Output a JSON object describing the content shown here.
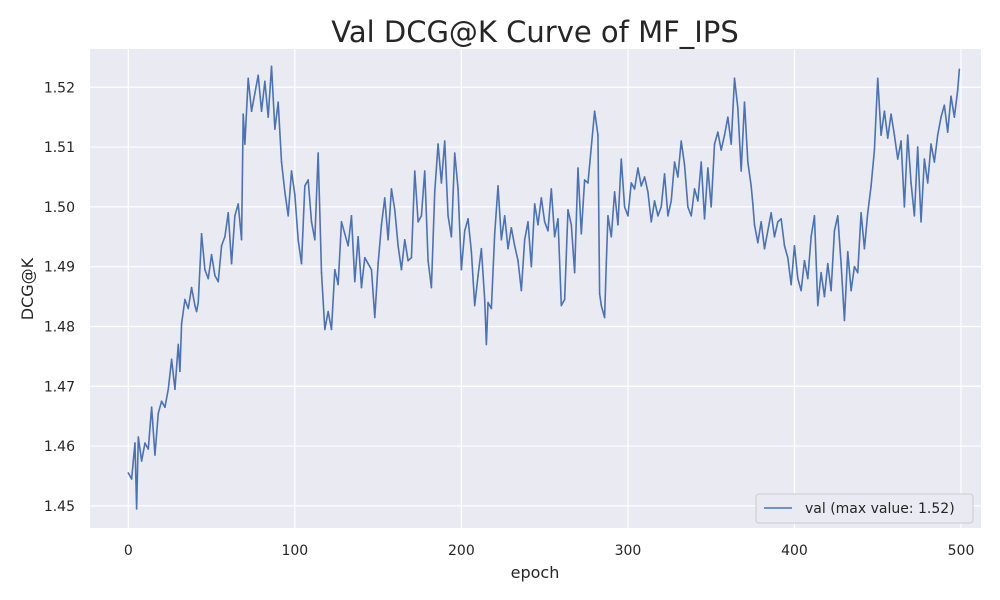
{
  "chart_data": {
    "type": "line",
    "title": "Val DCG@K Curve of MF_IPS",
    "xlabel": "epoch",
    "ylabel": "DCG@K",
    "xlim": [
      -23,
      512
    ],
    "ylim": [
      1.4463,
      1.5264
    ],
    "xticks": [
      0,
      100,
      200,
      300,
      400,
      500
    ],
    "yticks": [
      1.45,
      1.46,
      1.47,
      1.48,
      1.49,
      1.5,
      1.51,
      1.52
    ],
    "xtick_labels": [
      "0",
      "100",
      "200",
      "300",
      "400",
      "500"
    ],
    "ytick_labels": [
      "1.45",
      "1.46",
      "1.47",
      "1.48",
      "1.49",
      "1.50",
      "1.51",
      "1.52"
    ],
    "grid": true,
    "legend_position": "lower-right",
    "colors": {
      "line": "#4c72b0",
      "background": "#eaeaf2",
      "grid": "#ffffff"
    },
    "series": [
      {
        "name": "val (max value: 1.52)",
        "x": [
          0,
          2,
          4,
          5,
          6,
          8,
          10,
          12,
          14,
          16,
          18,
          20,
          22,
          24,
          26,
          28,
          30,
          31,
          32,
          34,
          36,
          38,
          40,
          41,
          42,
          44,
          46,
          48,
          50,
          52,
          54,
          56,
          58,
          60,
          62,
          64,
          66,
          68,
          69,
          70,
          72,
          74,
          76,
          78,
          80,
          82,
          84,
          86,
          88,
          90,
          92,
          94,
          96,
          98,
          100,
          102,
          104,
          106,
          108,
          110,
          112,
          114,
          116,
          118,
          120,
          122,
          124,
          126,
          128,
          130,
          132,
          134,
          136,
          138,
          140,
          142,
          144,
          146,
          148,
          150,
          152,
          154,
          156,
          158,
          160,
          162,
          164,
          166,
          168,
          170,
          172,
          174,
          176,
          178,
          180,
          182,
          184,
          186,
          188,
          190,
          192,
          194,
          196,
          198,
          200,
          202,
          204,
          206,
          208,
          210,
          212,
          214,
          215,
          216,
          218,
          220,
          222,
          224,
          226,
          228,
          230,
          232,
          234,
          236,
          238,
          240,
          242,
          244,
          246,
          248,
          250,
          252,
          254,
          256,
          258,
          260,
          262,
          264,
          266,
          268,
          270,
          272,
          274,
          276,
          278,
          280,
          282,
          283,
          284,
          286,
          287,
          288,
          290,
          292,
          294,
          296,
          298,
          300,
          302,
          304,
          306,
          308,
          310,
          312,
          314,
          316,
          318,
          320,
          322,
          324,
          326,
          328,
          330,
          332,
          334,
          336,
          338,
          340,
          342,
          344,
          346,
          348,
          350,
          352,
          354,
          356,
          358,
          360,
          362,
          364,
          366,
          368,
          370,
          372,
          374,
          375,
          376,
          378,
          380,
          382,
          384,
          386,
          388,
          390,
          392,
          394,
          396,
          398,
          400,
          402,
          404,
          406,
          408,
          410,
          412,
          414,
          416,
          418,
          420,
          422,
          424,
          426,
          428,
          430,
          432,
          434,
          436,
          438,
          440,
          442,
          444,
          446,
          448,
          450,
          452,
          454,
          456,
          458,
          460,
          462,
          464,
          466,
          468,
          470,
          472,
          474,
          476,
          478,
          480,
          482,
          484,
          486,
          488,
          490,
          492,
          494,
          496,
          498,
          499
        ],
        "y": [
          1.4555,
          1.4545,
          1.4605,
          1.4495,
          1.4615,
          1.4575,
          1.4605,
          1.4595,
          1.4665,
          1.4585,
          1.4655,
          1.4675,
          1.4665,
          1.4695,
          1.4745,
          1.4695,
          1.477,
          1.4725,
          1.4805,
          1.4845,
          1.483,
          1.4865,
          1.4835,
          1.4825,
          1.484,
          1.4955,
          1.4895,
          1.488,
          1.492,
          1.4885,
          1.4875,
          1.4935,
          1.495,
          1.499,
          1.4905,
          1.4985,
          1.5005,
          1.4945,
          1.5155,
          1.5105,
          1.5215,
          1.516,
          1.519,
          1.522,
          1.516,
          1.521,
          1.515,
          1.5235,
          1.513,
          1.5175,
          1.5075,
          1.5025,
          1.4985,
          1.506,
          1.502,
          1.4945,
          1.4905,
          1.5035,
          1.5045,
          1.4975,
          1.4945,
          1.509,
          1.489,
          1.4795,
          1.4825,
          1.4795,
          1.4895,
          1.487,
          1.4975,
          1.4955,
          1.4935,
          1.4985,
          1.4875,
          1.495,
          1.4865,
          1.4915,
          1.4905,
          1.4895,
          1.4815,
          1.4905,
          1.497,
          1.5015,
          1.4945,
          1.503,
          1.4995,
          1.4935,
          1.4895,
          1.4945,
          1.491,
          1.4915,
          1.506,
          1.4975,
          1.4985,
          1.506,
          1.491,
          1.4865,
          1.5025,
          1.5105,
          1.504,
          1.511,
          1.4985,
          1.495,
          1.509,
          1.503,
          1.4895,
          1.496,
          1.498,
          1.4925,
          1.4835,
          1.4885,
          1.493,
          1.4845,
          1.477,
          1.484,
          1.483,
          1.4955,
          1.5035,
          1.4945,
          1.4985,
          1.493,
          1.4965,
          1.4935,
          1.491,
          1.486,
          1.4945,
          1.4975,
          1.49,
          1.5005,
          1.497,
          1.5015,
          1.4975,
          1.496,
          1.503,
          1.495,
          1.498,
          1.4835,
          1.4845,
          1.4995,
          1.497,
          1.489,
          1.5065,
          1.4955,
          1.5045,
          1.504,
          1.51,
          1.516,
          1.512,
          1.4855,
          1.4835,
          1.4815,
          1.4905,
          1.4985,
          1.495,
          1.5025,
          1.497,
          1.508,
          1.5,
          1.4985,
          1.504,
          1.503,
          1.5065,
          1.5035,
          1.505,
          1.5025,
          1.4975,
          1.501,
          1.4985,
          1.5,
          1.5055,
          1.4985,
          1.501,
          1.5075,
          1.505,
          1.511,
          1.507,
          1.5,
          1.4985,
          1.503,
          1.501,
          1.5075,
          1.498,
          1.5065,
          1.5,
          1.5105,
          1.5125,
          1.5095,
          1.512,
          1.515,
          1.5105,
          1.5215,
          1.5165,
          1.506,
          1.5175,
          1.5075,
          1.5035,
          1.5005,
          1.497,
          1.494,
          1.4975,
          1.493,
          1.496,
          1.499,
          1.495,
          1.4975,
          1.498,
          1.4935,
          1.4915,
          1.487,
          1.4935,
          1.488,
          1.486,
          1.491,
          1.488,
          1.495,
          1.4985,
          1.4835,
          1.489,
          1.485,
          1.4905,
          1.486,
          1.496,
          1.4985,
          1.4905,
          1.481,
          1.4925,
          1.486,
          1.49,
          1.489,
          1.499,
          1.493,
          1.499,
          1.5035,
          1.5095,
          1.5215,
          1.512,
          1.516,
          1.5115,
          1.5155,
          1.512,
          1.508,
          1.511,
          1.5,
          1.512,
          1.504,
          1.4985,
          1.51,
          1.4975,
          1.508,
          1.504,
          1.5105,
          1.5075,
          1.512,
          1.515,
          1.517,
          1.5125,
          1.5185,
          1.515,
          1.5195,
          1.523
        ]
      }
    ]
  }
}
